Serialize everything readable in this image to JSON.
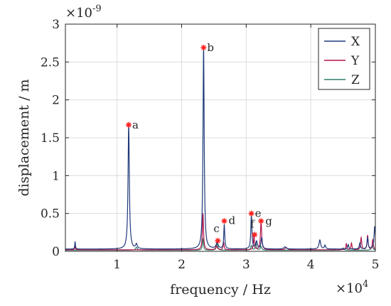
{
  "chart_data": {
    "type": "line",
    "xlabel": "frequency / Hz",
    "ylabel": "displacement / m",
    "x_exponent": {
      "base": "×10",
      "power": "4"
    },
    "y_exponent": {
      "base": "×10",
      "power": "-9"
    },
    "xlim": [
      2000,
      50000
    ],
    "ylim": [
      0,
      3e-09
    ],
    "x_ticks": [
      10000,
      20000,
      30000,
      40000,
      50000
    ],
    "x_tick_labels": [
      "1",
      "2",
      "3",
      "4",
      "5"
    ],
    "y_ticks": [
      0,
      5e-10,
      1e-09,
      1.5e-09,
      2e-09,
      2.5e-09,
      3e-09
    ],
    "y_tick_labels": [
      "0",
      "0.5",
      "1",
      "1.5",
      "2",
      "2.5",
      "3"
    ],
    "grid": true,
    "legend_position": "top-right",
    "series": [
      {
        "name": "X",
        "color": "#1f3a7a",
        "baseline": 3e-11,
        "peaks": [
          {
            "f": 3500,
            "a": 1e-10,
            "w": 60
          },
          {
            "f": 11800,
            "a": 1.65e-09,
            "w": 120
          },
          {
            "f": 13000,
            "a": 6e-11,
            "w": 150
          },
          {
            "f": 23400,
            "a": 2.68e-09,
            "w": 110
          },
          {
            "f": 25500,
            "a": 8e-11,
            "w": 200
          },
          {
            "f": 26600,
            "a": 3.2e-10,
            "w": 90
          },
          {
            "f": 30800,
            "a": 4.5e-10,
            "w": 100
          },
          {
            "f": 31600,
            "a": 1e-10,
            "w": 150
          },
          {
            "f": 32400,
            "a": 1.5e-10,
            "w": 120
          },
          {
            "f": 36000,
            "a": 3e-11,
            "w": 200
          },
          {
            "f": 41400,
            "a": 1.2e-10,
            "w": 150
          },
          {
            "f": 42200,
            "a": 5e-11,
            "w": 120
          },
          {
            "f": 45800,
            "a": 6e-11,
            "w": 100
          },
          {
            "f": 47600,
            "a": 8e-11,
            "w": 100
          },
          {
            "f": 48800,
            "a": 1.5e-10,
            "w": 100
          },
          {
            "f": 49900,
            "a": 3e-10,
            "w": 120
          }
        ]
      },
      {
        "name": "Y",
        "color": "#b3144a",
        "baseline": 2e-11,
        "peaks": [
          {
            "f": 3500,
            "a": 8e-11,
            "w": 50
          },
          {
            "f": 23300,
            "a": 4.8e-10,
            "w": 100
          },
          {
            "f": 25400,
            "a": 5e-11,
            "w": 150
          },
          {
            "f": 26500,
            "a": 1e-10,
            "w": 90
          },
          {
            "f": 31200,
            "a": 1.8e-10,
            "w": 90
          },
          {
            "f": 32300,
            "a": 3.8e-10,
            "w": 110
          },
          {
            "f": 36200,
            "a": 3e-11,
            "w": 200
          },
          {
            "f": 45500,
            "a": 8e-11,
            "w": 90
          },
          {
            "f": 46300,
            "a": 9e-11,
            "w": 90
          },
          {
            "f": 47800,
            "a": 1.6e-10,
            "w": 100
          },
          {
            "f": 48800,
            "a": 1.9e-10,
            "w": 100
          },
          {
            "f": 49600,
            "a": 1.3e-10,
            "w": 100
          }
        ]
      },
      {
        "name": "Z",
        "color": "#2f7d6a",
        "baseline": 1.5e-11,
        "peaks": [
          {
            "f": 13000,
            "a": 4e-11,
            "w": 150
          },
          {
            "f": 23300,
            "a": 1.5e-10,
            "w": 100
          },
          {
            "f": 25500,
            "a": 1e-10,
            "w": 120
          },
          {
            "f": 30800,
            "a": 6e-11,
            "w": 120
          },
          {
            "f": 31500,
            "a": 1e-10,
            "w": 100
          },
          {
            "f": 32300,
            "a": 5e-11,
            "w": 120
          },
          {
            "f": 45000,
            "a": 3e-11,
            "w": 150
          },
          {
            "f": 49500,
            "a": 5e-11,
            "w": 150
          }
        ]
      }
    ],
    "markers": [
      {
        "label": "a",
        "x": 11800,
        "y": 1.67e-09
      },
      {
        "label": "b",
        "x": 23400,
        "y": 2.69e-09
      },
      {
        "label": "c",
        "x": 25600,
        "y": 1.4e-10
      },
      {
        "label": "d",
        "x": 26600,
        "y": 4e-10
      },
      {
        "label": "e",
        "x": 30800,
        "y": 5e-10
      },
      {
        "label": "f",
        "x": 31300,
        "y": 2.2e-10
      },
      {
        "label": "g",
        "x": 32300,
        "y": 4e-10
      }
    ],
    "marker_color": "#ff2020"
  }
}
